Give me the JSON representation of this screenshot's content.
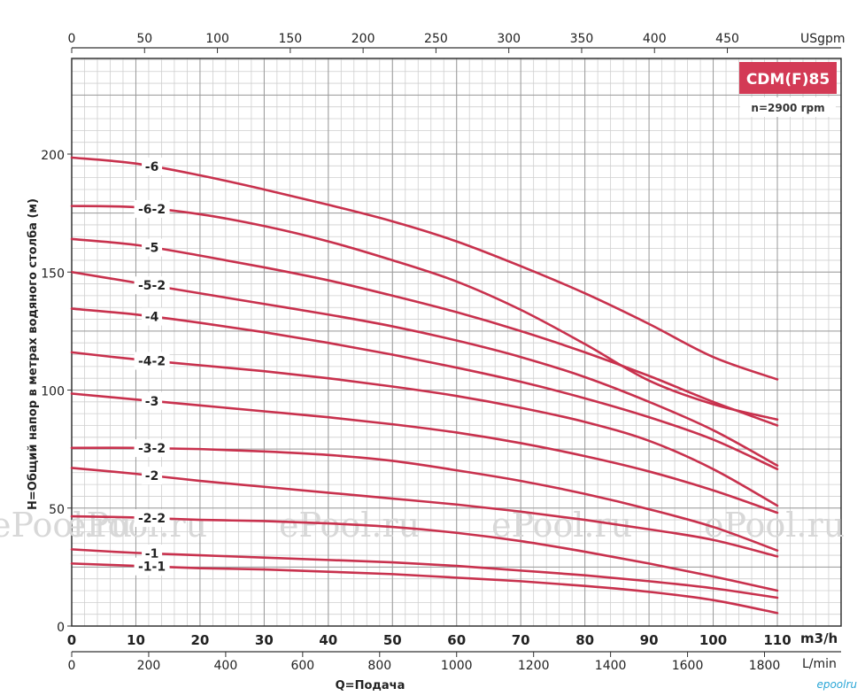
{
  "chart_data": {
    "type": "line",
    "title": "CDM(F)85",
    "subtitle": "n=2900 rpm",
    "xlabel": "Q=Подача",
    "ylabel": "H=Общий напор в метрах водяного столба (м)",
    "x_unit": "m3/h",
    "xlim": [
      0,
      110
    ],
    "ylim": [
      0,
      200
    ],
    "x_ticks": [
      0,
      10,
      20,
      30,
      40,
      50,
      60,
      70,
      80,
      90,
      100,
      110
    ],
    "y_ticks": [
      0,
      50,
      100,
      150,
      200
    ],
    "top_axis": {
      "unit": "USgpm",
      "ticks": [
        0,
        50,
        100,
        150,
        200,
        250,
        300,
        350,
        400,
        450
      ]
    },
    "bottom_axis2": {
      "unit": "L/min",
      "ticks": [
        0,
        200,
        400,
        600,
        800,
        1000,
        1200,
        1400,
        1600,
        1800
      ]
    },
    "grid": true,
    "curve_color": "#c8314d",
    "badge_color": "#d33a55",
    "series": [
      {
        "name": "-6",
        "x": [
          0,
          10,
          20,
          30,
          40,
          50,
          60,
          70,
          80,
          90,
          100,
          110
        ],
        "y": [
          198.5,
          196,
          191,
          185,
          178.5,
          171.5,
          163,
          152.5,
          141,
          128,
          114,
          104.5
        ]
      },
      {
        "name": "-6-2",
        "x": [
          0,
          10,
          20,
          30,
          40,
          50,
          60,
          70,
          80,
          90,
          100,
          110
        ],
        "y": [
          178,
          177.5,
          174.5,
          169.5,
          163,
          155,
          146,
          134,
          119.5,
          104,
          94,
          87.5
        ]
      },
      {
        "name": "-5",
        "x": [
          0,
          10,
          20,
          30,
          40,
          50,
          60,
          70,
          80,
          90,
          100,
          110
        ],
        "y": [
          164,
          161.5,
          157,
          152,
          146.5,
          140,
          133,
          125,
          116,
          106,
          95,
          85
        ]
      },
      {
        "name": "-5-2",
        "x": [
          0,
          10,
          20,
          30,
          40,
          50,
          60,
          70,
          80,
          90,
          100,
          110
        ],
        "y": [
          150,
          145.5,
          141,
          136.5,
          132,
          127,
          121,
          114,
          105.5,
          95,
          83,
          68
        ]
      },
      {
        "name": "-4",
        "x": [
          0,
          10,
          20,
          30,
          40,
          50,
          60,
          70,
          80,
          90,
          100,
          110
        ],
        "y": [
          134.5,
          132,
          128.5,
          124.5,
          120,
          115,
          109.5,
          103.5,
          96.5,
          88.5,
          79,
          66.5
        ]
      },
      {
        "name": "-4-2",
        "x": [
          0,
          10,
          20,
          30,
          40,
          50,
          60,
          70,
          80,
          90,
          100,
          110
        ],
        "y": [
          116,
          113,
          110.5,
          108,
          105,
          101.5,
          97.5,
          92.5,
          86.5,
          78.5,
          66.5,
          51
        ]
      },
      {
        "name": "-3",
        "x": [
          0,
          10,
          20,
          30,
          40,
          50,
          60,
          70,
          80,
          90,
          100,
          110
        ],
        "y": [
          98.5,
          96,
          93.5,
          91,
          88.5,
          85.5,
          82,
          77.5,
          72,
          65.5,
          57.5,
          48
        ]
      },
      {
        "name": "-3-2",
        "x": [
          0,
          10,
          20,
          30,
          40,
          50,
          60,
          70,
          80,
          90,
          100,
          110
        ],
        "y": [
          75.5,
          75.5,
          75,
          74,
          72.5,
          70,
          66,
          61.5,
          56,
          49.5,
          42,
          32
        ]
      },
      {
        "name": "-2",
        "x": [
          0,
          10,
          20,
          30,
          40,
          50,
          60,
          70,
          80,
          90,
          100,
          110
        ],
        "y": [
          67,
          64.5,
          61.5,
          59,
          56.5,
          54,
          51.5,
          48.5,
          45,
          41,
          36.5,
          29.5
        ]
      },
      {
        "name": "-2-2",
        "x": [
          0,
          10,
          20,
          30,
          40,
          50,
          60,
          70,
          80,
          90,
          100,
          110
        ],
        "y": [
          46.5,
          46,
          45,
          44.5,
          43.5,
          42,
          39.5,
          36,
          31.5,
          26.5,
          21,
          15
        ]
      },
      {
        "name": "-1",
        "x": [
          0,
          10,
          20,
          30,
          40,
          50,
          60,
          70,
          80,
          90,
          100,
          110
        ],
        "y": [
          32.5,
          31,
          30,
          29,
          28,
          27,
          25.5,
          23.5,
          21.5,
          19,
          16,
          12
        ]
      },
      {
        "name": "-1-1",
        "x": [
          0,
          10,
          20,
          30,
          40,
          50,
          60,
          70,
          80,
          90,
          100,
          110
        ],
        "y": [
          26.5,
          25.5,
          24.5,
          24,
          23,
          22,
          20.5,
          19,
          17,
          14.5,
          11,
          5.5
        ]
      }
    ]
  },
  "watermarks": [
    "ePool.ru",
    "ePool.ru",
    "ePool.ru",
    "ePool.ru"
  ],
  "corner_watermark": "epoolru"
}
